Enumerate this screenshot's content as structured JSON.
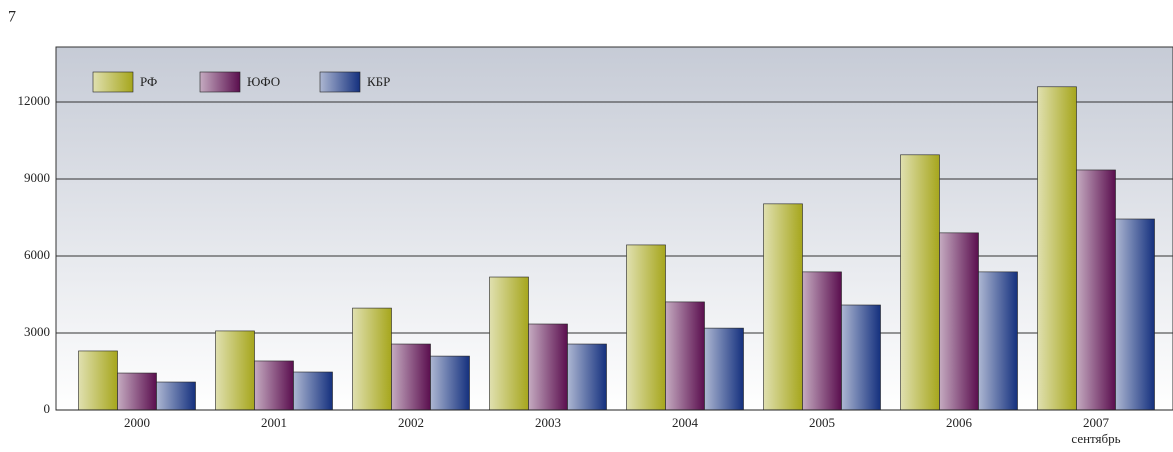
{
  "page_number": "7",
  "chart_data": {
    "type": "bar",
    "categories": [
      "2000",
      "2001",
      "2002",
      "2003",
      "2004",
      "2005",
      "2006",
      "2007"
    ],
    "last_category_note": "сентябрь",
    "series": [
      {
        "name": "РФ",
        "color": "#a6a61c",
        "values": [
          2300,
          3080,
          3970,
          5180,
          6430,
          8030,
          9940,
          12590
        ]
      },
      {
        "name": "ЮФО",
        "color": "#5a0e4e",
        "values": [
          1440,
          1910,
          2570,
          3350,
          4210,
          5380,
          6900,
          9350
        ]
      },
      {
        "name": "КБР",
        "color": "#14307e",
        "values": [
          1090,
          1480,
          2100,
          2570,
          3190,
          4090,
          5380,
          7440
        ]
      }
    ],
    "ylim": [
      0,
      14140
    ],
    "yticks": [
      0,
      3000,
      6000,
      9000,
      12000
    ],
    "grid": true,
    "legend": "top-left"
  }
}
